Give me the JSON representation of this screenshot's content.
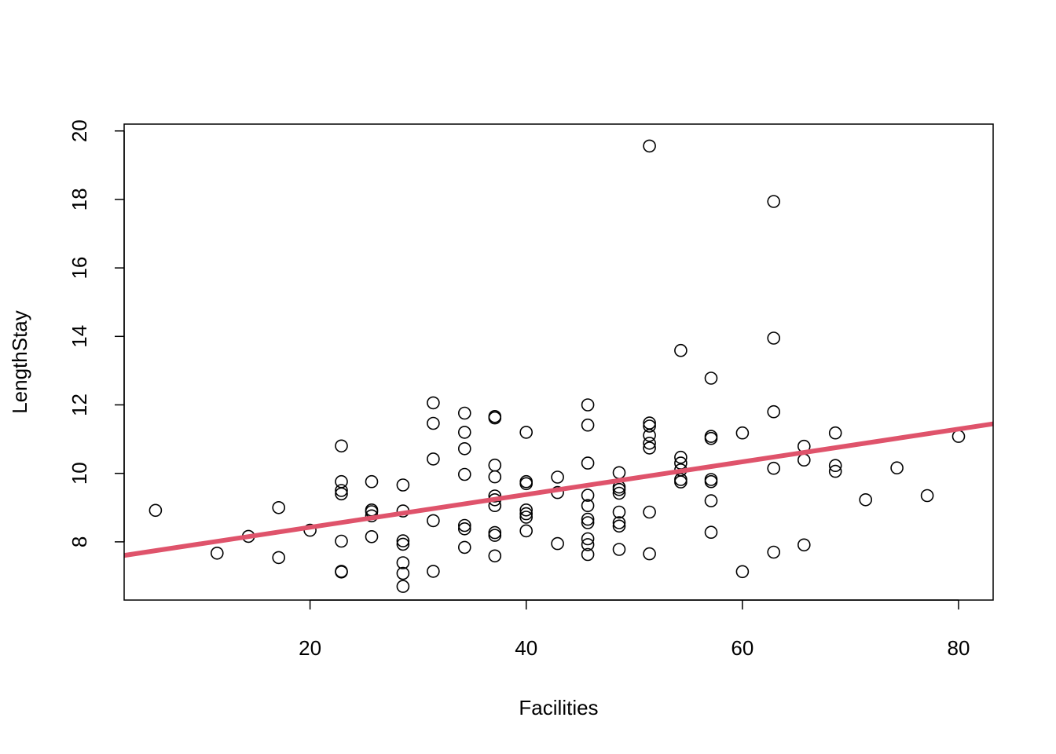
{
  "chart_data": {
    "type": "scatter",
    "xlabel": "Facilities",
    "ylabel": "LengthStay",
    "xlim": [
      2.8,
      83.2
    ],
    "ylim": [
      6.3,
      20.2
    ],
    "xticks": [
      20,
      40,
      60,
      80
    ],
    "yticks": [
      8,
      10,
      12,
      14,
      16,
      18,
      20
    ],
    "grid": false,
    "point_color": "#000000",
    "line_color": "#DF536B",
    "regression_line": {
      "intercept": 7.47,
      "slope": 0.0478
    },
    "points": [
      [
        5.7,
        8.92
      ],
      [
        11.4,
        7.67
      ],
      [
        14.3,
        8.16
      ],
      [
        17.1,
        9.0
      ],
      [
        17.1,
        7.54
      ],
      [
        20.0,
        8.34
      ],
      [
        22.9,
        10.8
      ],
      [
        22.9,
        9.76
      ],
      [
        22.9,
        9.5
      ],
      [
        22.9,
        9.4
      ],
      [
        22.9,
        8.02
      ],
      [
        22.9,
        7.14
      ],
      [
        22.9,
        7.12
      ],
      [
        25.7,
        9.76
      ],
      [
        25.7,
        8.93
      ],
      [
        25.7,
        8.88
      ],
      [
        25.7,
        8.76
      ],
      [
        25.7,
        8.15
      ],
      [
        28.6,
        9.66
      ],
      [
        28.6,
        8.9
      ],
      [
        28.6,
        8.03
      ],
      [
        28.6,
        7.93
      ],
      [
        28.6,
        7.39
      ],
      [
        28.6,
        7.08
      ],
      [
        28.6,
        6.7
      ],
      [
        31.4,
        12.06
      ],
      [
        31.4,
        11.46
      ],
      [
        31.4,
        10.42
      ],
      [
        31.4,
        8.62
      ],
      [
        31.4,
        7.14
      ],
      [
        34.3,
        11.76
      ],
      [
        34.3,
        11.2
      ],
      [
        34.3,
        10.72
      ],
      [
        34.3,
        9.97
      ],
      [
        34.3,
        8.48
      ],
      [
        34.3,
        8.38
      ],
      [
        34.3,
        7.84
      ],
      [
        37.1,
        11.66
      ],
      [
        37.1,
        11.62
      ],
      [
        37.1,
        10.24
      ],
      [
        37.1,
        9.9
      ],
      [
        37.1,
        9.34
      ],
      [
        37.1,
        9.23
      ],
      [
        37.1,
        9.06
      ],
      [
        37.1,
        8.27
      ],
      [
        37.1,
        8.19
      ],
      [
        37.1,
        7.59
      ],
      [
        40.0,
        11.2
      ],
      [
        40.0,
        9.76
      ],
      [
        40.0,
        9.7
      ],
      [
        40.0,
        8.93
      ],
      [
        40.0,
        8.82
      ],
      [
        40.0,
        8.72
      ],
      [
        40.0,
        8.32
      ],
      [
        42.9,
        9.89
      ],
      [
        42.9,
        9.44
      ],
      [
        42.9,
        7.95
      ],
      [
        45.7,
        12.0
      ],
      [
        45.7,
        11.41
      ],
      [
        45.7,
        10.3
      ],
      [
        45.7,
        9.36
      ],
      [
        45.7,
        9.06
      ],
      [
        45.7,
        8.66
      ],
      [
        45.7,
        8.56
      ],
      [
        45.7,
        8.09
      ],
      [
        45.7,
        7.92
      ],
      [
        45.7,
        7.63
      ],
      [
        48.6,
        10.02
      ],
      [
        48.6,
        9.6
      ],
      [
        48.6,
        9.53
      ],
      [
        48.6,
        9.42
      ],
      [
        48.6,
        8.87
      ],
      [
        48.6,
        8.56
      ],
      [
        48.6,
        8.46
      ],
      [
        48.6,
        7.78
      ],
      [
        51.4,
        19.56
      ],
      [
        51.4,
        11.47
      ],
      [
        51.4,
        11.38
      ],
      [
        51.4,
        11.11
      ],
      [
        51.4,
        10.88
      ],
      [
        51.4,
        10.74
      ],
      [
        51.4,
        8.87
      ],
      [
        51.4,
        7.65
      ],
      [
        54.3,
        13.59
      ],
      [
        54.3,
        10.47
      ],
      [
        54.3,
        10.3
      ],
      [
        54.3,
        10.1
      ],
      [
        54.3,
        9.82
      ],
      [
        54.3,
        9.75
      ],
      [
        57.1,
        12.78
      ],
      [
        57.1,
        11.08
      ],
      [
        57.1,
        11.02
      ],
      [
        57.1,
        9.82
      ],
      [
        57.1,
        9.76
      ],
      [
        57.1,
        9.2
      ],
      [
        57.1,
        8.28
      ],
      [
        60.0,
        11.18
      ],
      [
        60.0,
        7.13
      ],
      [
        62.9,
        17.94
      ],
      [
        62.9,
        13.95
      ],
      [
        62.9,
        11.8
      ],
      [
        62.9,
        10.15
      ],
      [
        62.9,
        7.7
      ],
      [
        65.7,
        10.79
      ],
      [
        65.7,
        10.39
      ],
      [
        65.7,
        7.91
      ],
      [
        68.6,
        11.18
      ],
      [
        68.6,
        10.23
      ],
      [
        68.6,
        10.06
      ],
      [
        71.4,
        9.23
      ],
      [
        74.3,
        10.16
      ],
      [
        77.1,
        9.35
      ],
      [
        80.0,
        11.08
      ]
    ]
  }
}
